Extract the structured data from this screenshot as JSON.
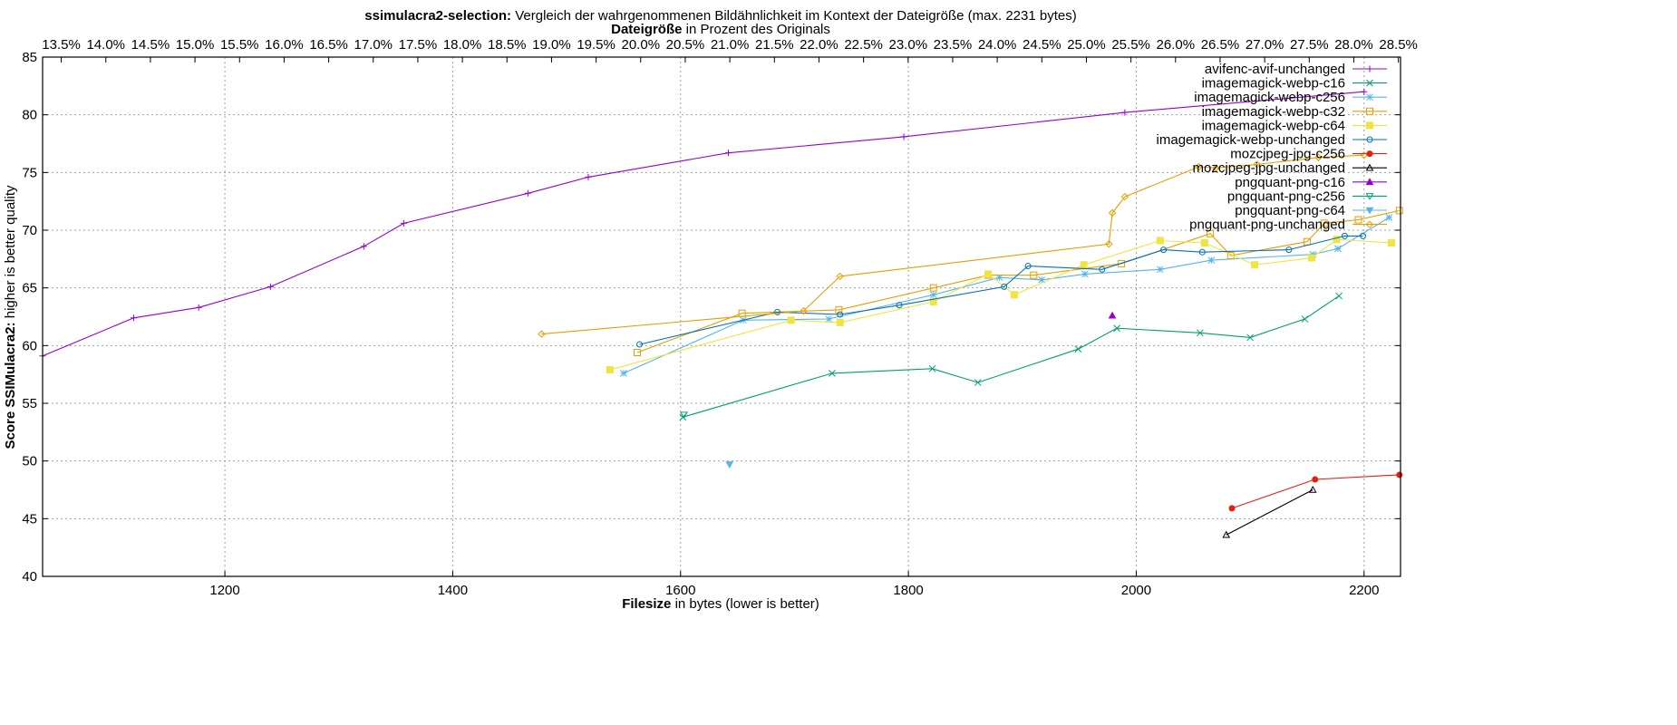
{
  "chart_data": {
    "type": "line",
    "title_bold": "ssimulacra2-selection:",
    "title_rest": " Vergleich der wahrgenommenen Bildähnlichkeit im Kontext der Dateigröße (max. 2231 bytes)",
    "x2label_bold": "Dateigröße",
    "x2label_rest": " in Prozent des Originals",
    "xlabel_bold": "Filesize",
    "xlabel_rest": " in bytes (lower is better)",
    "ylabel_bold": "Score SSIMulacra2:",
    "ylabel_rest": " higher is better quality",
    "xlim": [
      1040,
      2232
    ],
    "ylim": [
      40,
      85
    ],
    "x_ticks": [
      1200,
      1400,
      1600,
      1800,
      2000,
      2200
    ],
    "y_ticks": [
      40,
      45,
      50,
      55,
      60,
      65,
      70,
      75,
      80,
      85
    ],
    "x2_ticks": [
      "13.5%",
      "14.0%",
      "14.5%",
      "15.0%",
      "15.5%",
      "16.0%",
      "16.5%",
      "17.0%",
      "17.5%",
      "18.0%",
      "18.5%",
      "19.0%",
      "19.5%",
      "20.0%",
      "20.5%",
      "21.0%",
      "21.5%",
      "22.0%",
      "22.5%",
      "23.0%",
      "23.5%",
      "24.0%",
      "24.5%",
      "25.0%",
      "25.5%",
      "26.0%",
      "26.5%",
      "27.0%",
      "27.5%",
      "28.0%",
      "28.5%"
    ],
    "x2_tick_values": [
      13.5,
      14.0,
      14.5,
      15.0,
      15.5,
      16.0,
      16.5,
      17.0,
      17.5,
      18.0,
      18.5,
      19.0,
      19.5,
      20.0,
      20.5,
      21.0,
      21.5,
      22.0,
      22.5,
      23.0,
      23.5,
      24.0,
      24.5,
      25.0,
      25.5,
      26.0,
      26.5,
      27.0,
      27.5,
      28.0,
      28.5
    ],
    "x2_total_bytes": 7825,
    "grid": true,
    "legend_position": "top-right",
    "series": [
      {
        "name": "avifenc-avif-unchanged",
        "color": "#9400d3",
        "marker": "plus",
        "points": [
          [
            1040,
            59.1
          ],
          [
            1120,
            62.4
          ],
          [
            1177,
            63.3
          ],
          [
            1240,
            65.1
          ],
          [
            1322,
            68.6
          ],
          [
            1357,
            70.6
          ],
          [
            1466,
            73.2
          ],
          [
            1519,
            74.6
          ],
          [
            1642,
            76.7
          ],
          [
            1796,
            78.1
          ],
          [
            1990,
            80.2
          ],
          [
            2200,
            82.0
          ]
        ]
      },
      {
        "name": "imagemagick-webp-c16",
        "color": "#009e73",
        "marker": "x",
        "points": [
          [
            1602,
            53.8
          ],
          [
            1733,
            57.6
          ],
          [
            1821,
            58.0
          ],
          [
            1861,
            56.8
          ],
          [
            1949,
            59.7
          ],
          [
            1983,
            61.5
          ],
          [
            2056,
            61.1
          ],
          [
            2100,
            60.7
          ],
          [
            2148,
            62.3
          ],
          [
            2178,
            64.3
          ]
        ]
      },
      {
        "name": "imagemagick-webp-c256",
        "color": "#56b4e9",
        "marker": "star",
        "points": [
          [
            1550,
            57.6
          ],
          [
            1655,
            62.2
          ],
          [
            1730,
            62.3
          ],
          [
            1822,
            64.4
          ],
          [
            1880,
            65.9
          ],
          [
            1917,
            65.7
          ],
          [
            1955,
            66.2
          ],
          [
            2021,
            66.6
          ],
          [
            2066,
            67.4
          ],
          [
            2155,
            67.9
          ],
          [
            2177,
            68.4
          ],
          [
            2222,
            71.1
          ]
        ]
      },
      {
        "name": "imagemagick-webp-c32",
        "color": "#e69f00",
        "marker": "square",
        "points": [
          [
            1562,
            59.4
          ],
          [
            1654,
            62.8
          ],
          [
            1739,
            63.1
          ],
          [
            1822,
            65.0
          ],
          [
            1870,
            66.1
          ],
          [
            1910,
            66.1
          ],
          [
            1987,
            67.1
          ],
          [
            2065,
            69.7
          ],
          [
            2083,
            67.8
          ],
          [
            2150,
            69.0
          ],
          [
            2165,
            70.6
          ],
          [
            2195,
            70.9
          ],
          [
            2231,
            71.7
          ]
        ]
      },
      {
        "name": "imagemagick-webp-c64",
        "color": "#f0e442",
        "marker": "filled-square",
        "points": [
          [
            1538,
            57.9
          ],
          [
            1697,
            62.2
          ],
          [
            1740,
            62.0
          ],
          [
            1822,
            63.8
          ],
          [
            1870,
            66.2
          ],
          [
            1893,
            64.4
          ],
          [
            1954,
            67.0
          ],
          [
            2021,
            69.1
          ],
          [
            2060,
            68.9
          ],
          [
            2104,
            67.0
          ],
          [
            2154,
            67.6
          ],
          [
            2176,
            69.2
          ],
          [
            2224,
            68.9
          ]
        ]
      },
      {
        "name": "imagemagick-webp-unchanged",
        "color": "#0072b2",
        "marker": "circle",
        "points": [
          [
            1564,
            60.1
          ],
          [
            1685,
            62.9
          ],
          [
            1740,
            62.7
          ],
          [
            1792,
            63.5
          ],
          [
            1884,
            65.1
          ],
          [
            1905,
            66.9
          ],
          [
            1970,
            66.6
          ],
          [
            2024,
            68.3
          ],
          [
            2058,
            68.1
          ],
          [
            2134,
            68.3
          ],
          [
            2183,
            69.5
          ],
          [
            2199,
            69.5
          ]
        ]
      },
      {
        "name": "mozcjpeg-jpg-c256",
        "color": "#e51e10",
        "marker": "filled-circle",
        "points": [
          [
            2084,
            45.9
          ],
          [
            2157,
            48.4
          ],
          [
            2231,
            48.8
          ]
        ]
      },
      {
        "name": "mozcjpeg-jpg-unchanged",
        "color": "#000000",
        "marker": "triangle",
        "points": [
          [
            2079,
            43.6
          ],
          [
            2155,
            47.5
          ]
        ]
      },
      {
        "name": "pngquant-png-c16",
        "color": "#9400d3",
        "marker": "filled-triangle",
        "points": [
          [
            1979,
            62.6
          ]
        ]
      },
      {
        "name": "pngquant-png-c256",
        "color": "#009e73",
        "marker": "triangle-down",
        "points": [
          [
            1603,
            54.0
          ]
        ]
      },
      {
        "name": "pngquant-png-c64",
        "color": "#56b4e9",
        "marker": "filled-triangle-down",
        "points": [
          [
            1643,
            49.7
          ]
        ]
      },
      {
        "name": "pngquant-png-unchanged",
        "color": "#e69f00",
        "marker": "diamond",
        "points": [
          [
            1478,
            61.0
          ],
          [
            1708,
            63.0
          ],
          [
            1740,
            66.0
          ],
          [
            1976,
            68.8
          ],
          [
            1979,
            71.5
          ],
          [
            1990,
            72.9
          ],
          [
            2055,
            75.5
          ],
          [
            2070,
            75.4
          ],
          [
            2106,
            75.7
          ],
          [
            2160,
            76.3
          ],
          [
            2200,
            76.5
          ]
        ]
      }
    ]
  }
}
